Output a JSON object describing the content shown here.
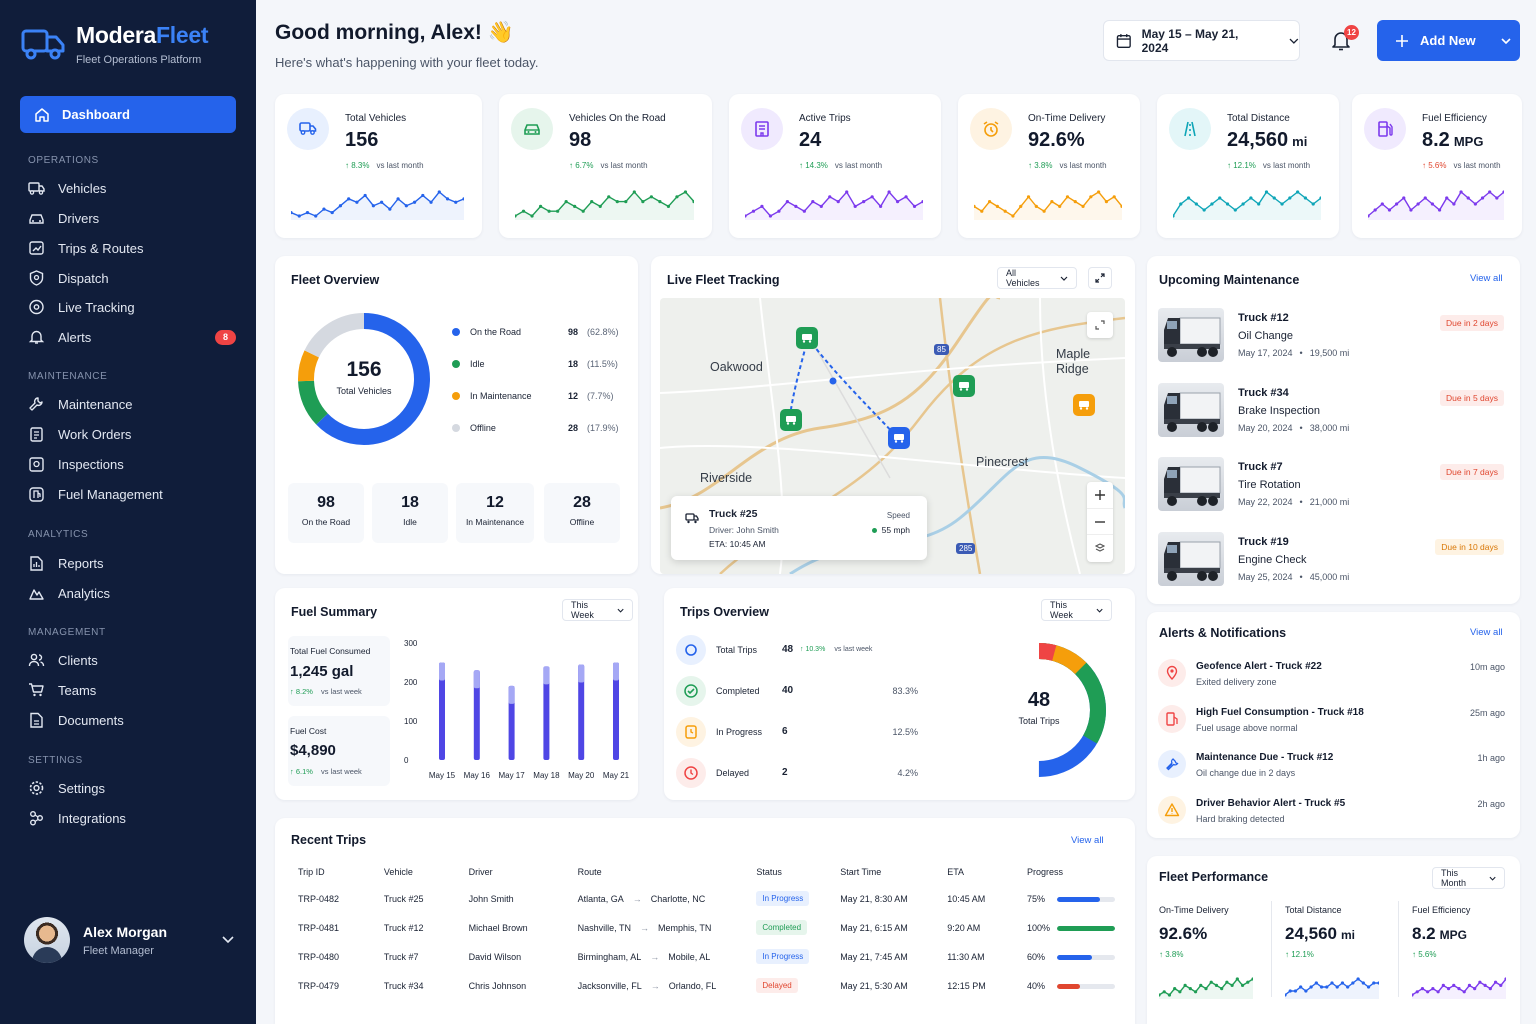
{
  "brand": {
    "name_part1": "Modera",
    "name_part2": "Fleet",
    "subtitle": "Fleet Operations Platform"
  },
  "nav": {
    "dashboard": "Dashboard",
    "sections": {
      "operations": "OPERATIONS",
      "maintenance": "MAINTENANCE",
      "analytics": "ANALYTICS",
      "management": "MANAGEMENT",
      "settings": "SETTINGS"
    },
    "vehicles": "Vehicles",
    "drivers": "Drivers",
    "trips_routes": "Trips & Routes",
    "dispatch": "Dispatch",
    "live_tracking": "Live Tracking",
    "alerts": "Alerts",
    "alerts_badge": "8",
    "maintenance": "Maintenance",
    "work_orders": "Work Orders",
    "inspections": "Inspections",
    "fuel_management": "Fuel Management",
    "reports": "Reports",
    "analytics": "Analytics",
    "clients": "Clients",
    "teams": "Teams",
    "documents": "Documents",
    "settings": "Settings",
    "integrations": "Integrations"
  },
  "user": {
    "name": "Alex Morgan",
    "role": "Fleet Manager"
  },
  "header": {
    "greeting": "Good morning, Alex! 👋",
    "subtitle": "Here's what's happening with your fleet today.",
    "date_range": "May 15 – May 21, 2024",
    "notifications_count": "12",
    "add_new": "Add New"
  },
  "colors": {
    "primary": "#2563eb",
    "green": "#1f9d55",
    "orange": "#f59e0b",
    "red": "#ef4444",
    "purple": "#7c3aed",
    "teal": "#0ea5b7",
    "sidebar": "#101d3a"
  },
  "kpis": [
    {
      "label": "Total Vehicles",
      "value": "156",
      "unit": "",
      "change": "8.3%",
      "compare": "vs last month",
      "icon": "truck-icon",
      "direction": "up"
    },
    {
      "label": "Vehicles On the Road",
      "value": "98",
      "unit": "",
      "change": "6.7%",
      "compare": "vs last month",
      "icon": "car-icon",
      "direction": "up"
    },
    {
      "label": "Active Trips",
      "value": "24",
      "unit": "",
      "change": "14.3%",
      "compare": "vs last month",
      "icon": "building-icon",
      "direction": "up"
    },
    {
      "label": "On-Time Delivery",
      "value": "92.6%",
      "unit": "",
      "change": "3.8%",
      "compare": "vs last month",
      "icon": "alarm-clock-icon",
      "direction": "up"
    },
    {
      "label": "Total Distance",
      "value": "24,560",
      "unit": "mi",
      "change": "12.1%",
      "compare": "vs last month",
      "icon": "road-icon",
      "direction": "up"
    },
    {
      "label": "Fuel Efficiency",
      "value": "8.2",
      "unit": "MPG",
      "change": "5.6%",
      "compare": "vs last month",
      "icon": "fuel-pump-icon",
      "direction": "up"
    }
  ],
  "fleet_overview": {
    "title": "Fleet Overview",
    "total": "156",
    "total_label": "Total Vehicles",
    "legend": [
      {
        "label": "On the Road",
        "value": "98",
        "pct": "(62.8%)",
        "color": "#2563eb"
      },
      {
        "label": "Idle",
        "value": "18",
        "pct": "(11.5%)",
        "color": "#1f9d55"
      },
      {
        "label": "In Maintenance",
        "value": "12",
        "pct": "(7.7%)",
        "color": "#f59e0b"
      },
      {
        "label": "Offline",
        "value": "28",
        "pct": "(17.9%)",
        "color": "#d5d9e0"
      }
    ],
    "cards": [
      {
        "value": "98",
        "label": "On the Road"
      },
      {
        "value": "18",
        "label": "Idle"
      },
      {
        "value": "12",
        "label": "In Maintenance"
      },
      {
        "value": "28",
        "label": "Offline"
      }
    ]
  },
  "tracking": {
    "title": "Live Fleet Tracking",
    "filter": "All Vehicles",
    "towns": [
      "Oakwood",
      "Maple Ridge",
      "Pinecrest",
      "Riverside"
    ],
    "highway_labels": [
      "85",
      "285"
    ],
    "popup": {
      "truck": "Truck #25",
      "driver": "Driver: John Smith",
      "eta": "ETA: 10:45 AM",
      "speed_label": "Speed",
      "speed": "55 mph"
    }
  },
  "maintenance": {
    "title": "Upcoming Maintenance",
    "view_all": "View all",
    "items": [
      {
        "truck": "Truck #12",
        "task": "Oil Change",
        "date": "May 17, 2024",
        "miles": "19,500 mi",
        "due": "Due in 2 days"
      },
      {
        "truck": "Truck #34",
        "task": "Brake Inspection",
        "date": "May 20, 2024",
        "miles": "38,000 mi",
        "due": "Due in 5 days"
      },
      {
        "truck": "Truck #7",
        "task": "Tire Rotation",
        "date": "May 22, 2024",
        "miles": "21,000 mi",
        "due": "Due in 7 days"
      },
      {
        "truck": "Truck #19",
        "task": "Engine Check",
        "date": "May 25, 2024",
        "miles": "45,000 mi",
        "due": "Due in 10 days"
      }
    ]
  },
  "fuel": {
    "title": "Fuel Summary",
    "period": "This Week",
    "consumed_label": "Total Fuel Consumed",
    "consumed": "1,245 gal",
    "consumed_change": "8.2%",
    "consumed_compare": "vs last week",
    "cost_label": "Fuel Cost",
    "cost": "$4,890",
    "cost_change": "6.1%",
    "cost_compare": "vs last week"
  },
  "trips_overview": {
    "title": "Trips Overview",
    "period": "This Week",
    "total": "48",
    "total_label": "Total Trips",
    "rows": [
      {
        "label": "Total Trips",
        "value": "48",
        "change": "10.3%",
        "compare": "vs last week",
        "pct": ""
      },
      {
        "label": "Completed",
        "value": "40",
        "pct": "83.3%"
      },
      {
        "label": "In Progress",
        "value": "6",
        "pct": "12.5%"
      },
      {
        "label": "Delayed",
        "value": "2",
        "pct": "4.2%"
      }
    ]
  },
  "alerts": {
    "title": "Alerts & Notifications",
    "view_all": "View all",
    "items": [
      {
        "title": "Geofence Alert - Truck #22",
        "desc": "Exited delivery zone",
        "time": "10m ago"
      },
      {
        "title": "High Fuel Consumption - Truck #18",
        "desc": "Fuel usage above normal",
        "time": "25m ago"
      },
      {
        "title": "Maintenance Due - Truck #12",
        "desc": "Oil change due in 2 days",
        "time": "1h ago"
      },
      {
        "title": "Driver Behavior Alert - Truck #5",
        "desc": "Hard braking detected",
        "time": "2h ago"
      }
    ]
  },
  "recent_trips": {
    "title": "Recent Trips",
    "view_all": "View all",
    "columns": [
      "Trip ID",
      "Vehicle",
      "Driver",
      "Route",
      "Status",
      "Start Time",
      "ETA",
      "Progress"
    ],
    "rows": [
      {
        "id": "TRP-0482",
        "vehicle": "Truck #25",
        "driver": "John Smith",
        "from": "Atlanta, GA",
        "to": "Charlotte, NC",
        "status": "In Progress",
        "start": "May 21, 8:30 AM",
        "eta": "10:45 AM",
        "progress": "75%",
        "progress_value": 0.75
      },
      {
        "id": "TRP-0481",
        "vehicle": "Truck #12",
        "driver": "Michael Brown",
        "from": "Nashville, TN",
        "to": "Memphis, TN",
        "status": "Completed",
        "start": "May 21, 6:15 AM",
        "eta": "9:20 AM",
        "progress": "100%",
        "progress_value": 1.0
      },
      {
        "id": "TRP-0480",
        "vehicle": "Truck #7",
        "driver": "David Wilson",
        "from": "Birmingham, AL",
        "to": "Mobile, AL",
        "status": "In Progress",
        "start": "May 21, 7:45 AM",
        "eta": "11:30 AM",
        "progress": "60%",
        "progress_value": 0.6
      },
      {
        "id": "TRP-0479",
        "vehicle": "Truck #34",
        "driver": "Chris Johnson",
        "from": "Jacksonville, FL",
        "to": "Orlando, FL",
        "status": "Delayed",
        "start": "May 21, 5:30 AM",
        "eta": "12:15 PM",
        "progress": "40%",
        "progress_value": 0.4
      }
    ]
  },
  "fleet_performance": {
    "title": "Fleet Performance",
    "period": "This Month",
    "metrics": [
      {
        "label": "On-Time Delivery",
        "value": "92.6%",
        "unit": "",
        "change": "3.8%"
      },
      {
        "label": "Total Distance",
        "value": "24,560",
        "unit": "mi",
        "change": "12.1%"
      },
      {
        "label": "Fuel Efficiency",
        "value": "8.2",
        "unit": "MPG",
        "change": "5.6%"
      }
    ]
  },
  "chart_data": [
    {
      "type": "pie",
      "title": "Fleet Overview",
      "categories": [
        "On the Road",
        "Idle",
        "In Maintenance",
        "Offline"
      ],
      "values": [
        98,
        18,
        12,
        28
      ]
    },
    {
      "type": "bar",
      "title": "Fuel Summary",
      "categories": [
        "May 15",
        "May 16",
        "May 17",
        "May 18",
        "May 20",
        "May 21"
      ],
      "series": [
        {
          "values": [
            250,
            230,
            190,
            240,
            245,
            250
          ]
        }
      ],
      "yticks": [
        "300",
        "200",
        "100",
        "0"
      ],
      "ylim": [
        0,
        300
      ]
    },
    {
      "type": "pie",
      "title": "Trips Overview",
      "categories": [
        "Completed",
        "In Progress",
        "Delayed"
      ],
      "values": [
        40,
        6,
        2
      ]
    }
  ]
}
